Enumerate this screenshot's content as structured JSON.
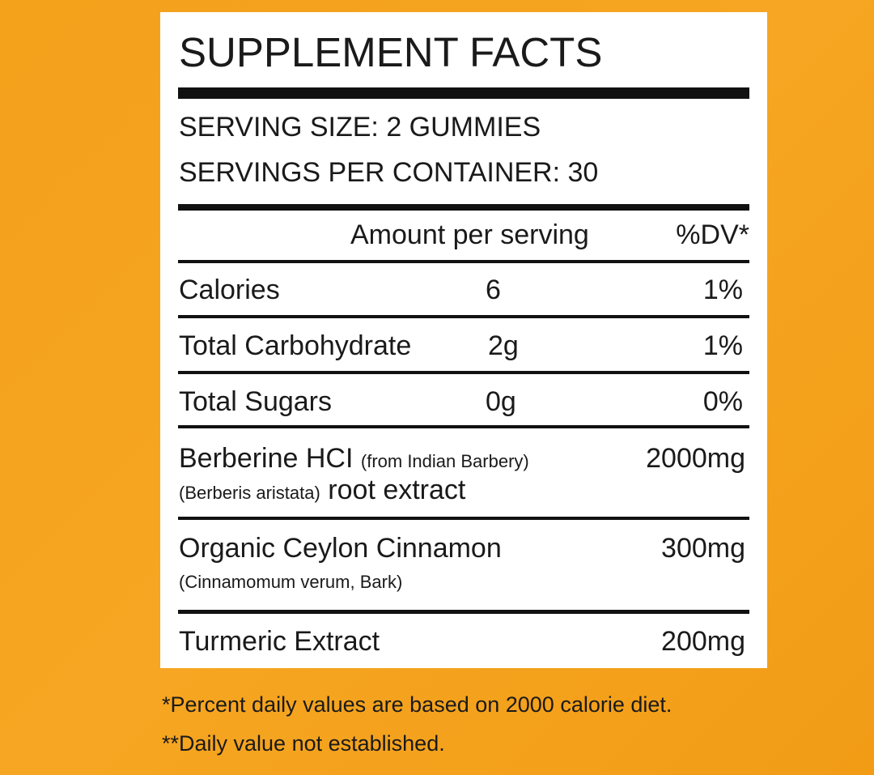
{
  "title": "SUPPLEMENT FACTS",
  "serving_size": "SERVING SIZE: 2 GUMMIES",
  "servings_per_container": "SERVINGS PER CONTAINER: 30",
  "header": {
    "amount": "Amount per serving",
    "dv": "%DV*"
  },
  "rows": [
    {
      "name": "Calories",
      "amount": "6",
      "dv": "1%"
    },
    {
      "name": "Total Carbohydrate",
      "amount": "2g",
      "dv": "1%"
    },
    {
      "name": "Total Sugars",
      "amount": "0g",
      "dv": "0%"
    }
  ],
  "ingredients": [
    {
      "name": "Berberine HCI",
      "source": "(from Indian Barbery)",
      "amount": "2000mg",
      "botanical": "(Berberis aristata)",
      "part": "root extract"
    },
    {
      "name": "Organic Ceylon Cinnamon",
      "amount": "300mg",
      "botanical": "(Cinnamomum verum, Bark)"
    },
    {
      "name": "Turmeric Extract",
      "amount": "200mg"
    }
  ],
  "footnotes": [
    "*Percent daily values are based on 2000 calorie diet.",
    "**Daily value not established."
  ]
}
